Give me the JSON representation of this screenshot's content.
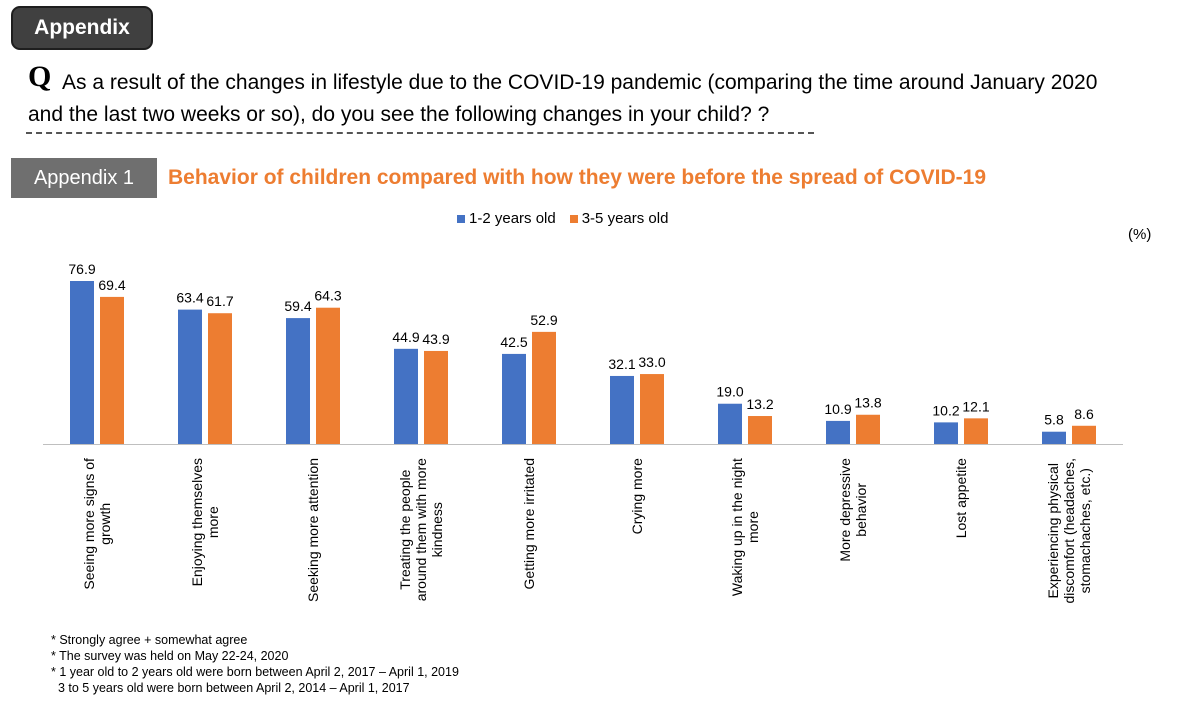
{
  "header": {
    "appendix_label": "Appendix",
    "q_mark": "Q",
    "question": "As a result of the changes in lifestyle due to the COVID-19 pandemic (comparing the time around January 2020 and the last two weeks or so), do you see the following changes in your child? ?"
  },
  "section": {
    "badge": "Appendix 1",
    "title": "Behavior of children compared with how they were before the spread of COVID-19"
  },
  "unit": "(%)",
  "colors": {
    "series1": "#4472c4",
    "series2": "#ed7d31",
    "title": "#ed7d31"
  },
  "chart_data": {
    "type": "bar",
    "categories": [
      [
        "Seeing more signs of",
        "growth"
      ],
      [
        "Enjoying themselves",
        "more"
      ],
      [
        "Seeking more attention"
      ],
      [
        "Treating the people",
        "around them with more",
        "kindness"
      ],
      [
        "Getting more irritated"
      ],
      [
        "Crying more"
      ],
      [
        "Waking up in the night",
        "more"
      ],
      [
        "More depressive",
        "behavior"
      ],
      [
        "Lost appetite"
      ],
      [
        "Experiencing physical",
        "discomfort (headaches,",
        "stomachaches, etc.)"
      ]
    ],
    "series": [
      {
        "name": "1-2 years old",
        "color": "#4472c4",
        "values": [
          76.9,
          63.4,
          59.4,
          44.9,
          42.5,
          32.1,
          19.0,
          10.9,
          10.2,
          5.8
        ]
      },
      {
        "name": "3-5 years old",
        "color": "#ed7d31",
        "values": [
          69.4,
          61.7,
          64.3,
          43.9,
          52.9,
          33.0,
          13.2,
          13.8,
          12.1,
          8.6
        ]
      }
    ],
    "ylim": [
      0,
      80
    ],
    "legend_position": "top-center",
    "grid": false
  },
  "footnotes": [
    "* Strongly agree + somewhat agree",
    "* The survey was held on May 22-24, 2020",
    "* 1 year old to 2 years old were born between April 2, 2017 – April 1, 2019",
    "  3 to 5 years old were born between April 2, 2014 – April 1, 2017"
  ]
}
